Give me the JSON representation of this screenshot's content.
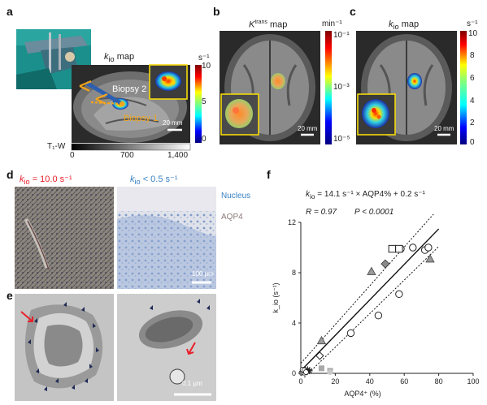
{
  "panels": {
    "a": {
      "label": "a",
      "map_title_k": "k",
      "map_title_sub": "io",
      "map_title_rest": " map",
      "biopsy2": "Biopsy 2",
      "biopsy1": "Biopsy 1",
      "scale": "20 mm",
      "colorbar_unit": "s⁻¹",
      "colorbar_ticks": [
        "10",
        "5",
        "0"
      ],
      "grayscale_label": "T₁-W",
      "grayscale_ticks": [
        "0",
        "700",
        "1,400"
      ]
    },
    "b": {
      "label": "b",
      "title_k": "K",
      "title_sup": "trans",
      "title_rest": " map",
      "colorbar_unit": "min⁻¹",
      "colorbar_ticks": [
        "10⁻¹",
        "10⁻³",
        "10⁻⁵"
      ],
      "scale": "20 mm"
    },
    "c": {
      "label": "c",
      "title_k": "k",
      "title_sub": "io",
      "title_rest": " map",
      "colorbar_unit": "s⁻¹",
      "colorbar_ticks": [
        "10",
        "8",
        "6",
        "4",
        "2",
        "0"
      ],
      "scale": "20 mm"
    },
    "d": {
      "label": "d",
      "left_k": "k",
      "left_sub": "io",
      "left_rest": " = 10.0 s⁻¹",
      "right_k": "k",
      "right_sub": "io",
      "right_rest": " < 0.5 s⁻¹",
      "legend_nucleus": "Nucleus",
      "legend_aqp4": "AQP4",
      "scale": "100 µm"
    },
    "e": {
      "label": "e",
      "scale": "0.1 µm"
    },
    "f": {
      "label": "f",
      "eq_k": "k",
      "eq_sub": "io",
      "eq_rest": " = 14.1 s⁻¹ × AQP4% + 0.2 s⁻¹",
      "r_text": "R = 0.97",
      "p_text": "P < 0.0001"
    }
  },
  "colors": {
    "red_label": "#e8202a",
    "blue_label": "#3a82c4",
    "nucleus": "#3a82c4",
    "aqp4": "#8a7a78",
    "biopsy_arrow": "#f2a51c",
    "probe": "#2d5fb0",
    "yellow_box": "#f5d90a"
  },
  "chart_data": {
    "type": "scatter",
    "xlabel": "AQP4⁺ (%)",
    "ylabel": "k_io (s⁻¹)",
    "xlim": [
      0,
      100
    ],
    "ylim": [
      0,
      12
    ],
    "xticks": [
      0,
      20,
      40,
      60,
      80,
      100
    ],
    "yticks": [
      0,
      4,
      8,
      12
    ],
    "fit": {
      "slope": 0.141,
      "intercept": 0.2
    },
    "series": [
      {
        "marker": "circle-open",
        "x": [
          29,
          45,
          57,
          58,
          65,
          72,
          74
        ],
        "y": [
          3.2,
          4.6,
          6.3,
          9.9,
          10.0,
          9.8,
          10.0
        ]
      },
      {
        "marker": "square-open",
        "x": [
          53,
          57
        ],
        "y": [
          9.9,
          9.9
        ]
      },
      {
        "marker": "triangle-gray",
        "x": [
          12,
          41,
          75
        ],
        "y": [
          2.6,
          8.1,
          9.1
        ]
      },
      {
        "marker": "diamond-gray",
        "x": [
          49
        ],
        "y": [
          8.7
        ]
      },
      {
        "marker": "square-gray",
        "x": [
          12,
          17
        ],
        "y": [
          0.4,
          0.2
        ]
      },
      {
        "marker": "circle-gray",
        "x": [
          17
        ],
        "y": [
          0.1
        ]
      },
      {
        "marker": "diamond-open",
        "x": [
          11
        ],
        "y": [
          1.4
        ]
      },
      {
        "marker": "asterisk",
        "x": [
          2,
          3,
          4,
          5
        ],
        "y": [
          0.1,
          0.2,
          0.3,
          0.2
        ]
      },
      {
        "marker": "cluster-open",
        "x": [
          0.5,
          1,
          1.5,
          2,
          2.5,
          1,
          2,
          3
        ],
        "y": [
          0.05,
          0.1,
          0.2,
          0.05,
          0.15,
          0.3,
          0.25,
          0.1
        ]
      }
    ]
  }
}
